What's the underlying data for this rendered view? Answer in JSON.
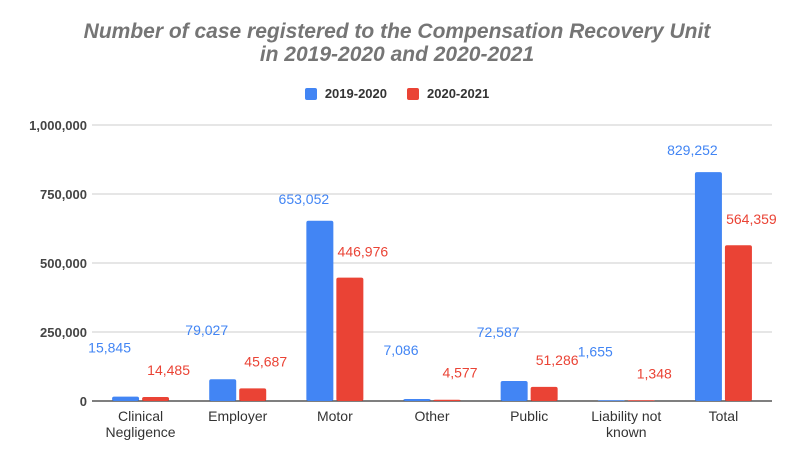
{
  "chart_data": {
    "type": "bar",
    "title_lines": [
      "Number of case registered to the Compensation Recovery Unit",
      "in 2019-2020 and 2020-2021"
    ],
    "categories": [
      [
        "Clinical",
        "Negligence"
      ],
      [
        "Employer"
      ],
      [
        "Motor"
      ],
      [
        "Other"
      ],
      [
        "Public"
      ],
      [
        "Liability not",
        "known"
      ],
      [
        "Total"
      ]
    ],
    "series": [
      {
        "name": "2019-2020",
        "color": "#4285f4",
        "values": [
          15845,
          79027,
          653052,
          7086,
          72587,
          1655,
          829252
        ],
        "labels": [
          "15,845",
          "79,027",
          "653,052",
          "7,086",
          "72,587",
          "1,655",
          "829,252"
        ]
      },
      {
        "name": "2020-2021",
        "color": "#ea4335",
        "values": [
          14485,
          45687,
          446976,
          4577,
          51286,
          1348,
          564359
        ],
        "labels": [
          "14,485",
          "45,687",
          "446,976",
          "4,577",
          "51,286",
          "1,348",
          "564,359"
        ]
      }
    ],
    "yticks": [
      0,
      250000,
      500000,
      750000,
      1000000
    ],
    "ytick_labels": [
      "0",
      "250,000",
      "500,000",
      "750,000",
      "1,000,000"
    ],
    "ylim": [
      0,
      1000000
    ],
    "xlabel": "",
    "ylabel": "",
    "grid": true,
    "legend_position": "top-center"
  }
}
